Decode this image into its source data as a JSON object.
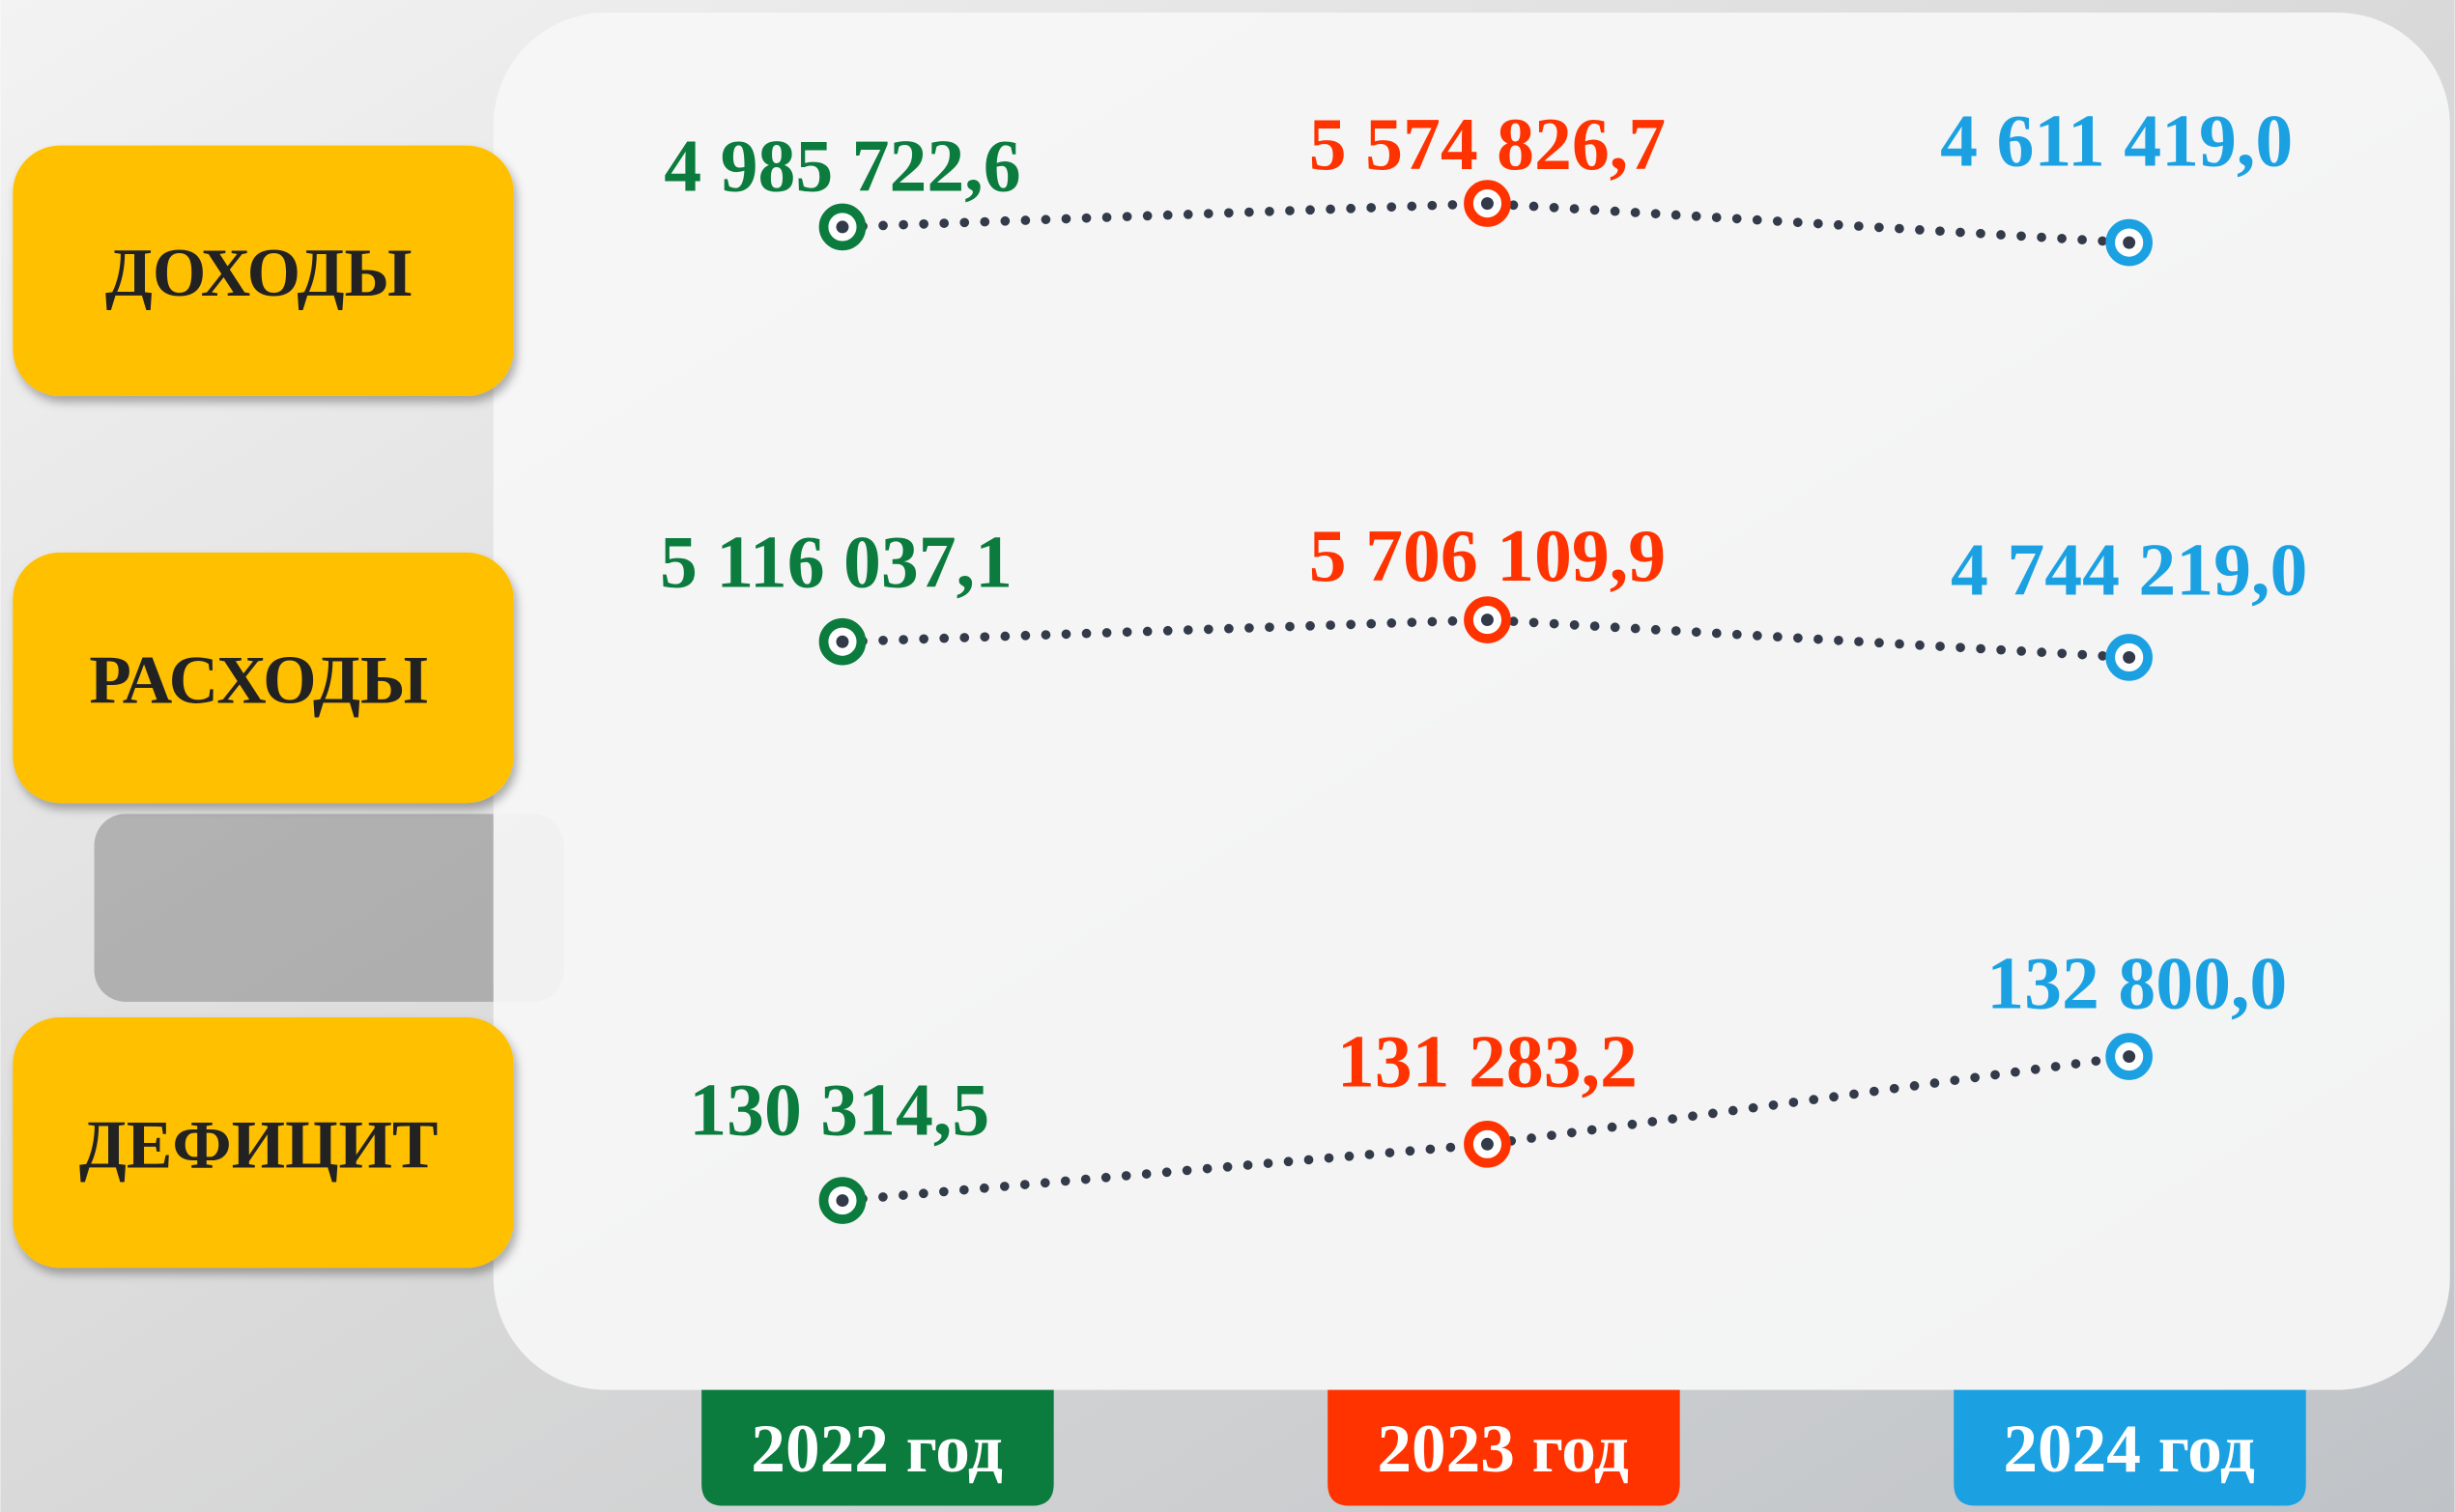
{
  "rows": [
    {
      "label": "ДОХОДЫ",
      "values": [
        "4 985 722,6",
        "5 574 826,7",
        "4 611 419,0"
      ]
    },
    {
      "label": "РАСХОДЫ",
      "values": [
        "5 116 037,1",
        "5 706 109,9",
        "4 744 219,0"
      ]
    },
    {
      "label": "ДЕФИЦИТ",
      "values": [
        "130 314,5",
        "131 283,2",
        "132 800,0"
      ]
    }
  ],
  "years": [
    "2022 год",
    "2023 год",
    "2024 год"
  ]
}
